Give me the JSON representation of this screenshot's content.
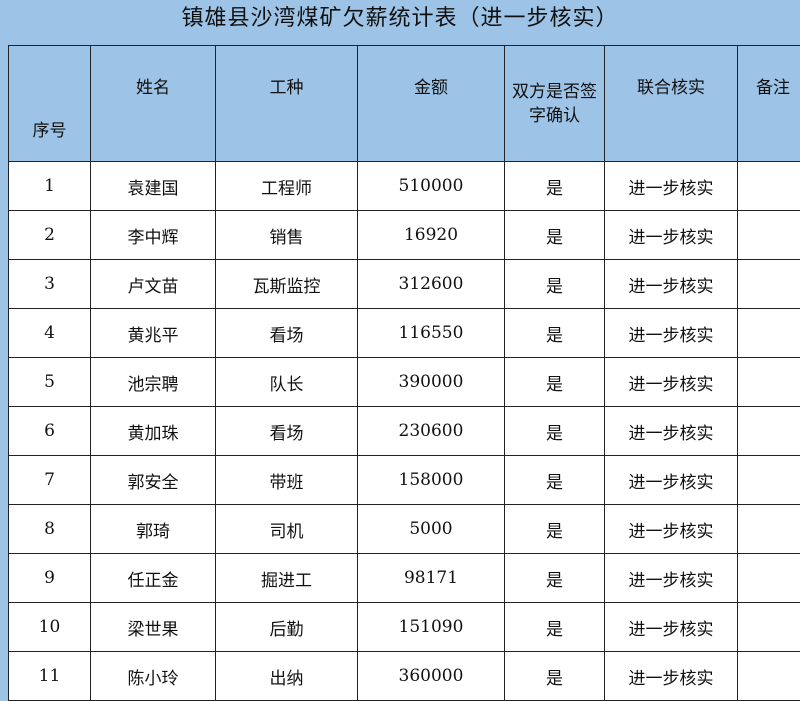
{
  "title": "镇雄县沙湾煤矿欠薪统计表（进一步核实）",
  "columns": [
    "序号",
    "姓名",
    "工种",
    "金额",
    "双方是否签字确认",
    "联合核实",
    "备注"
  ],
  "rows": [
    {
      "no": "1",
      "name": "袁建国",
      "job": "工程师",
      "amount": "510000",
      "signed": "是",
      "verify": "进一步核实",
      "note": ""
    },
    {
      "no": "2",
      "name": "李中辉",
      "job": "销售",
      "amount": "16920",
      "signed": "是",
      "verify": "进一步核实",
      "note": ""
    },
    {
      "no": "3",
      "name": "卢文苗",
      "job": "瓦斯监控",
      "amount": "312600",
      "signed": "是",
      "verify": "进一步核实",
      "note": ""
    },
    {
      "no": "4",
      "name": "黄兆平",
      "job": "看场",
      "amount": "116550",
      "signed": "是",
      "verify": "进一步核实",
      "note": ""
    },
    {
      "no": "5",
      "name": "池宗聘",
      "job": "队长",
      "amount": "390000",
      "signed": "是",
      "verify": "进一步核实",
      "note": ""
    },
    {
      "no": "6",
      "name": "黄加珠",
      "job": "看场",
      "amount": "230600",
      "signed": "是",
      "verify": "进一步核实",
      "note": ""
    },
    {
      "no": "7",
      "name": "郭安全",
      "job": "带班",
      "amount": "158000",
      "signed": "是",
      "verify": "进一步核实",
      "note": ""
    },
    {
      "no": "8",
      "name": "郭琦",
      "job": "司机",
      "amount": "5000",
      "signed": "是",
      "verify": "进一步核实",
      "note": ""
    },
    {
      "no": "9",
      "name": "任正金",
      "job": "掘进工",
      "amount": "98171",
      "signed": "是",
      "verify": "进一步核实",
      "note": ""
    },
    {
      "no": "10",
      "name": "梁世果",
      "job": "后勤",
      "amount": "151090",
      "signed": "是",
      "verify": "进一步核实",
      "note": ""
    },
    {
      "no": "11",
      "name": "陈小玲",
      "job": "出纳",
      "amount": "360000",
      "signed": "是",
      "verify": "进一步核实",
      "note": ""
    }
  ],
  "colors": {
    "background": "#9dc3e6",
    "header": "#9dc3e6",
    "cell": "#ffffff"
  }
}
